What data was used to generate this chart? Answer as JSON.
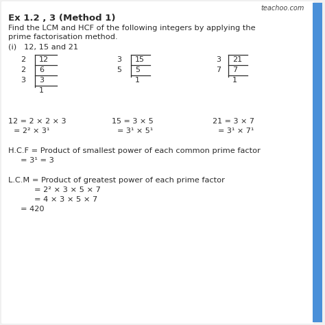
{
  "bg_color": "#f0f0f0",
  "content_bg": "#ffffff",
  "sidebar_color": "#4a90d9",
  "watermark": "teachoo.com",
  "title": "Ex 1.2 , 3 (Method 1)",
  "intro_line1": "Find the LCM and HCF of the following integers by applying the",
  "intro_line2": "prime factorisation method.",
  "part": "(i)   12, 15 and 21",
  "div_table_12": {
    "rows": [
      {
        "divisor": "2",
        "dividend": "12"
      },
      {
        "divisor": "2",
        "dividend": "6"
      },
      {
        "divisor": "3",
        "dividend": "3"
      },
      {
        "divisor": "",
        "dividend": "1"
      }
    ]
  },
  "div_table_15": {
    "rows": [
      {
        "divisor": "3",
        "dividend": "15"
      },
      {
        "divisor": "5",
        "dividend": "5"
      },
      {
        "divisor": "",
        "dividend": "1"
      }
    ]
  },
  "div_table_21": {
    "rows": [
      {
        "divisor": "3",
        "dividend": "21"
      },
      {
        "divisor": "7",
        "dividend": "7"
      },
      {
        "divisor": "",
        "dividend": "1"
      }
    ]
  },
  "factorization_12_line1": "12 = 2 × 2 × 3",
  "factorization_12_line2": "= 2² × 3¹",
  "factorization_15_line1": "15 = 3 × 5",
  "factorization_15_line2": "= 3¹ × 5¹",
  "factorization_21_line1": "21 = 3 × 7",
  "factorization_21_line2": "= 3¹ × 7¹",
  "hcf_line1": "H.C.F = Product of smallest power of each common prime factor",
  "hcf_line2": "= 3¹ = 3",
  "lcm_line1": "L.C.M = Product of greatest power of each prime factor",
  "lcm_line2": "= 2² × 3 × 5 × 7",
  "lcm_line3": "= 4 × 3 × 5 × 7",
  "lcm_line4": "= 420",
  "text_color": "#2a2a2a",
  "line_color": "#2a2a2a",
  "title_fontsize": 9.5,
  "body_fontsize": 8.2,
  "table_fontsize": 8.0,
  "wm_fontsize": 7.0
}
